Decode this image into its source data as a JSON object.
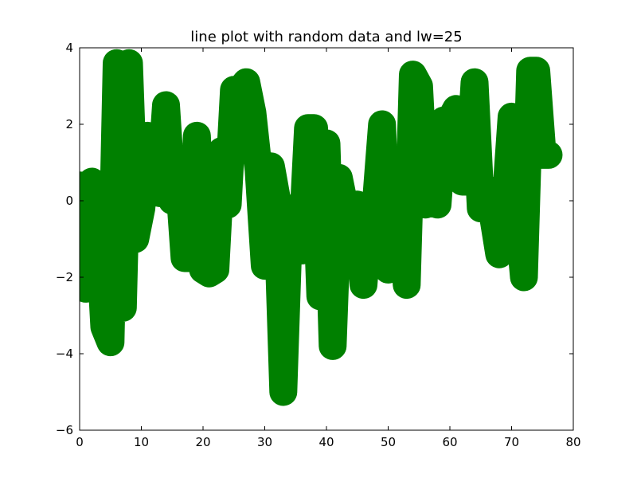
{
  "chart_data": {
    "type": "line",
    "title": "line plot with random data and lw=25",
    "xlabel": "",
    "ylabel": "",
    "xlim": [
      0,
      80
    ],
    "ylim": [
      -6,
      4
    ],
    "xticks": [
      0,
      10,
      20,
      30,
      40,
      50,
      60,
      70,
      80
    ],
    "yticks": [
      -6,
      -4,
      -2,
      0,
      2,
      4
    ],
    "grid": false,
    "legend": "none",
    "series": [
      {
        "color": "#008000",
        "linewidth": 25,
        "x": [
          0,
          1,
          2,
          3,
          4,
          5,
          6,
          7,
          8,
          9,
          10,
          11,
          12,
          13,
          14,
          15,
          16,
          17,
          18,
          19,
          20,
          21,
          22,
          23,
          24,
          25,
          26,
          27,
          28,
          29,
          30,
          31,
          32,
          33,
          34,
          35,
          36,
          37,
          38,
          39,
          40,
          41,
          42,
          43,
          44,
          45,
          46,
          47,
          48,
          49,
          50,
          51,
          52,
          53,
          54,
          55,
          56,
          57,
          58,
          59,
          60,
          61,
          62,
          63,
          64,
          65,
          66,
          67,
          68,
          69,
          70,
          71,
          72,
          73,
          74,
          75,
          76
        ],
        "y": [
          0.4,
          -2.3,
          0.5,
          -0.4,
          -3.3,
          -3.7,
          3.6,
          -2.8,
          3.6,
          -1.0,
          -0.2,
          1.7,
          0.8,
          0.2,
          2.5,
          0.0,
          0.8,
          -1.5,
          -1.5,
          1.7,
          -1.8,
          -1.9,
          -1.8,
          1.3,
          -0.1,
          2.9,
          2.9,
          3.1,
          2.3,
          0.8,
          -1.7,
          0.9,
          0.0,
          -5.0,
          -0.2,
          -0.6,
          -1.3,
          1.9,
          1.9,
          -2.5,
          1.5,
          -3.8,
          0.6,
          -0.2,
          -1.3,
          -0.1,
          -2.2,
          -0.1,
          -0.1,
          2.0,
          -1.8,
          -1.7,
          -0.1,
          -2.2,
          3.3,
          3.0,
          -0.1,
          0.2,
          -0.1,
          2.1,
          2.1,
          2.4,
          0.5,
          0.5,
          3.1,
          -0.2,
          0.3,
          -0.4,
          -1.4,
          -0.1,
          2.2,
          -0.2,
          -2.0,
          3.4,
          3.4,
          1.2,
          1.2
        ]
      }
    ]
  }
}
